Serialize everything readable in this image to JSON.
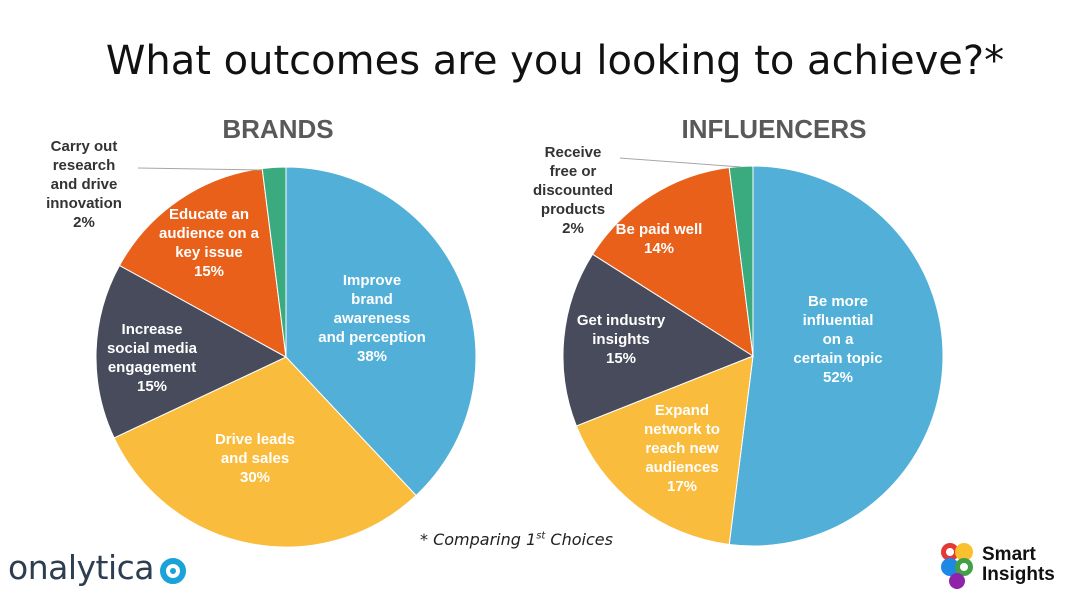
{
  "title": "What outcomes are you looking to achieve?*",
  "footnote": {
    "prefix": "* Comparing 1",
    "sup": "st",
    "suffix": " Choices"
  },
  "logos": {
    "left": "onalytica",
    "right_line1": "Smart",
    "right_line2": "Insights"
  },
  "chart_data": [
    {
      "type": "pie",
      "title": "BRANDS",
      "slices": [
        {
          "label": "Improve brand awareness and perception",
          "value": 38,
          "display": "38%",
          "color": "#51AFD8"
        },
        {
          "label": "Drive leads and sales",
          "value": 30,
          "display": "30%",
          "color": "#F9BC3C"
        },
        {
          "label": "Increase social media engagement",
          "value": 15,
          "display": "15%",
          "color": "#474B5B"
        },
        {
          "label": "Educate an audience on a key issue",
          "value": 15,
          "display": "15%",
          "color": "#E9601A"
        },
        {
          "label": "Carry out research and drive innovation",
          "value": 2,
          "display": "2%",
          "color": "#3AAA7F"
        }
      ]
    },
    {
      "type": "pie",
      "title": "INFLUENCERS",
      "slices": [
        {
          "label": "Be more influential on a certain topic",
          "value": 52,
          "display": "52%",
          "color": "#51AFD8"
        },
        {
          "label": "Expand network to reach new audiences",
          "value": 17,
          "display": "17%",
          "color": "#F9BC3C"
        },
        {
          "label": "Get industry insights",
          "value": 15,
          "display": "15%",
          "color": "#474B5B"
        },
        {
          "label": "Be paid well",
          "value": 14,
          "display": "14%",
          "color": "#E9601A"
        },
        {
          "label": "Receive free or discounted products",
          "value": 2,
          "display": "2%",
          "color": "#3AAA7F"
        }
      ]
    }
  ]
}
